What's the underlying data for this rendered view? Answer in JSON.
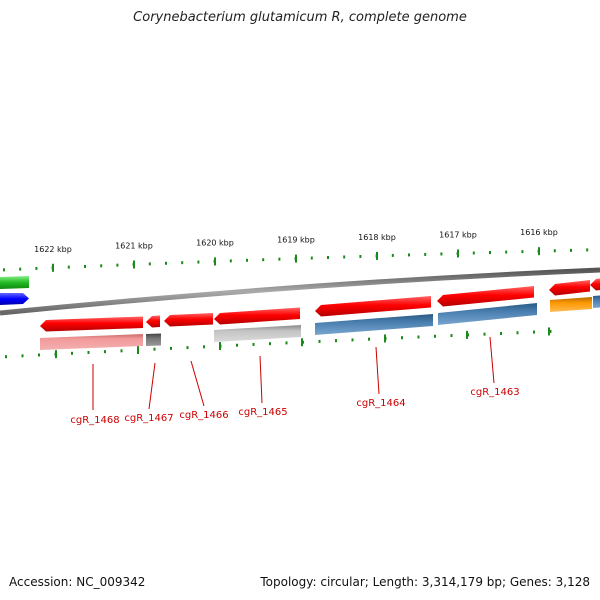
{
  "title": "Corynebacterium glutamicum R, complete genome",
  "footer": {
    "accession": "Accession: NC_009342",
    "summary": "Topology: circular; Length: 3,314,179 bp; Genes: 3,128"
  },
  "ruler": {
    "unit": "kbp",
    "labels": [
      "1622 kbp",
      "1621 kbp",
      "1620 kbp",
      "1619 kbp",
      "1618 kbp",
      "1617 kbp",
      "1616 kbp"
    ]
  },
  "genes": [
    {
      "label": "cgR_1468",
      "color": "#ff1a1a",
      "product_color": "#f08080"
    },
    {
      "label": "cgR_1467",
      "color": "#ff1a1a",
      "product_color": "#666666"
    },
    {
      "label": "cgR_1466",
      "color": "#ff1a1a"
    },
    {
      "label": "cgR_1465",
      "color": "#ff1a1a",
      "product_color": "#bbbbbb"
    },
    {
      "label": "cgR_1464",
      "color": "#ff1a1a",
      "product_color": "#4a7fb0"
    },
    {
      "label": "cgR_1463",
      "color": "#ff1a1a",
      "product_color": "#4a7fb0"
    }
  ],
  "colors": {
    "backbone": "#888888",
    "tick": "#1a8a1a",
    "label": "#cc0000",
    "partial_green": "#33cc33",
    "partial_blue": "#1a1aff",
    "partial_orange": "#ff9900"
  }
}
